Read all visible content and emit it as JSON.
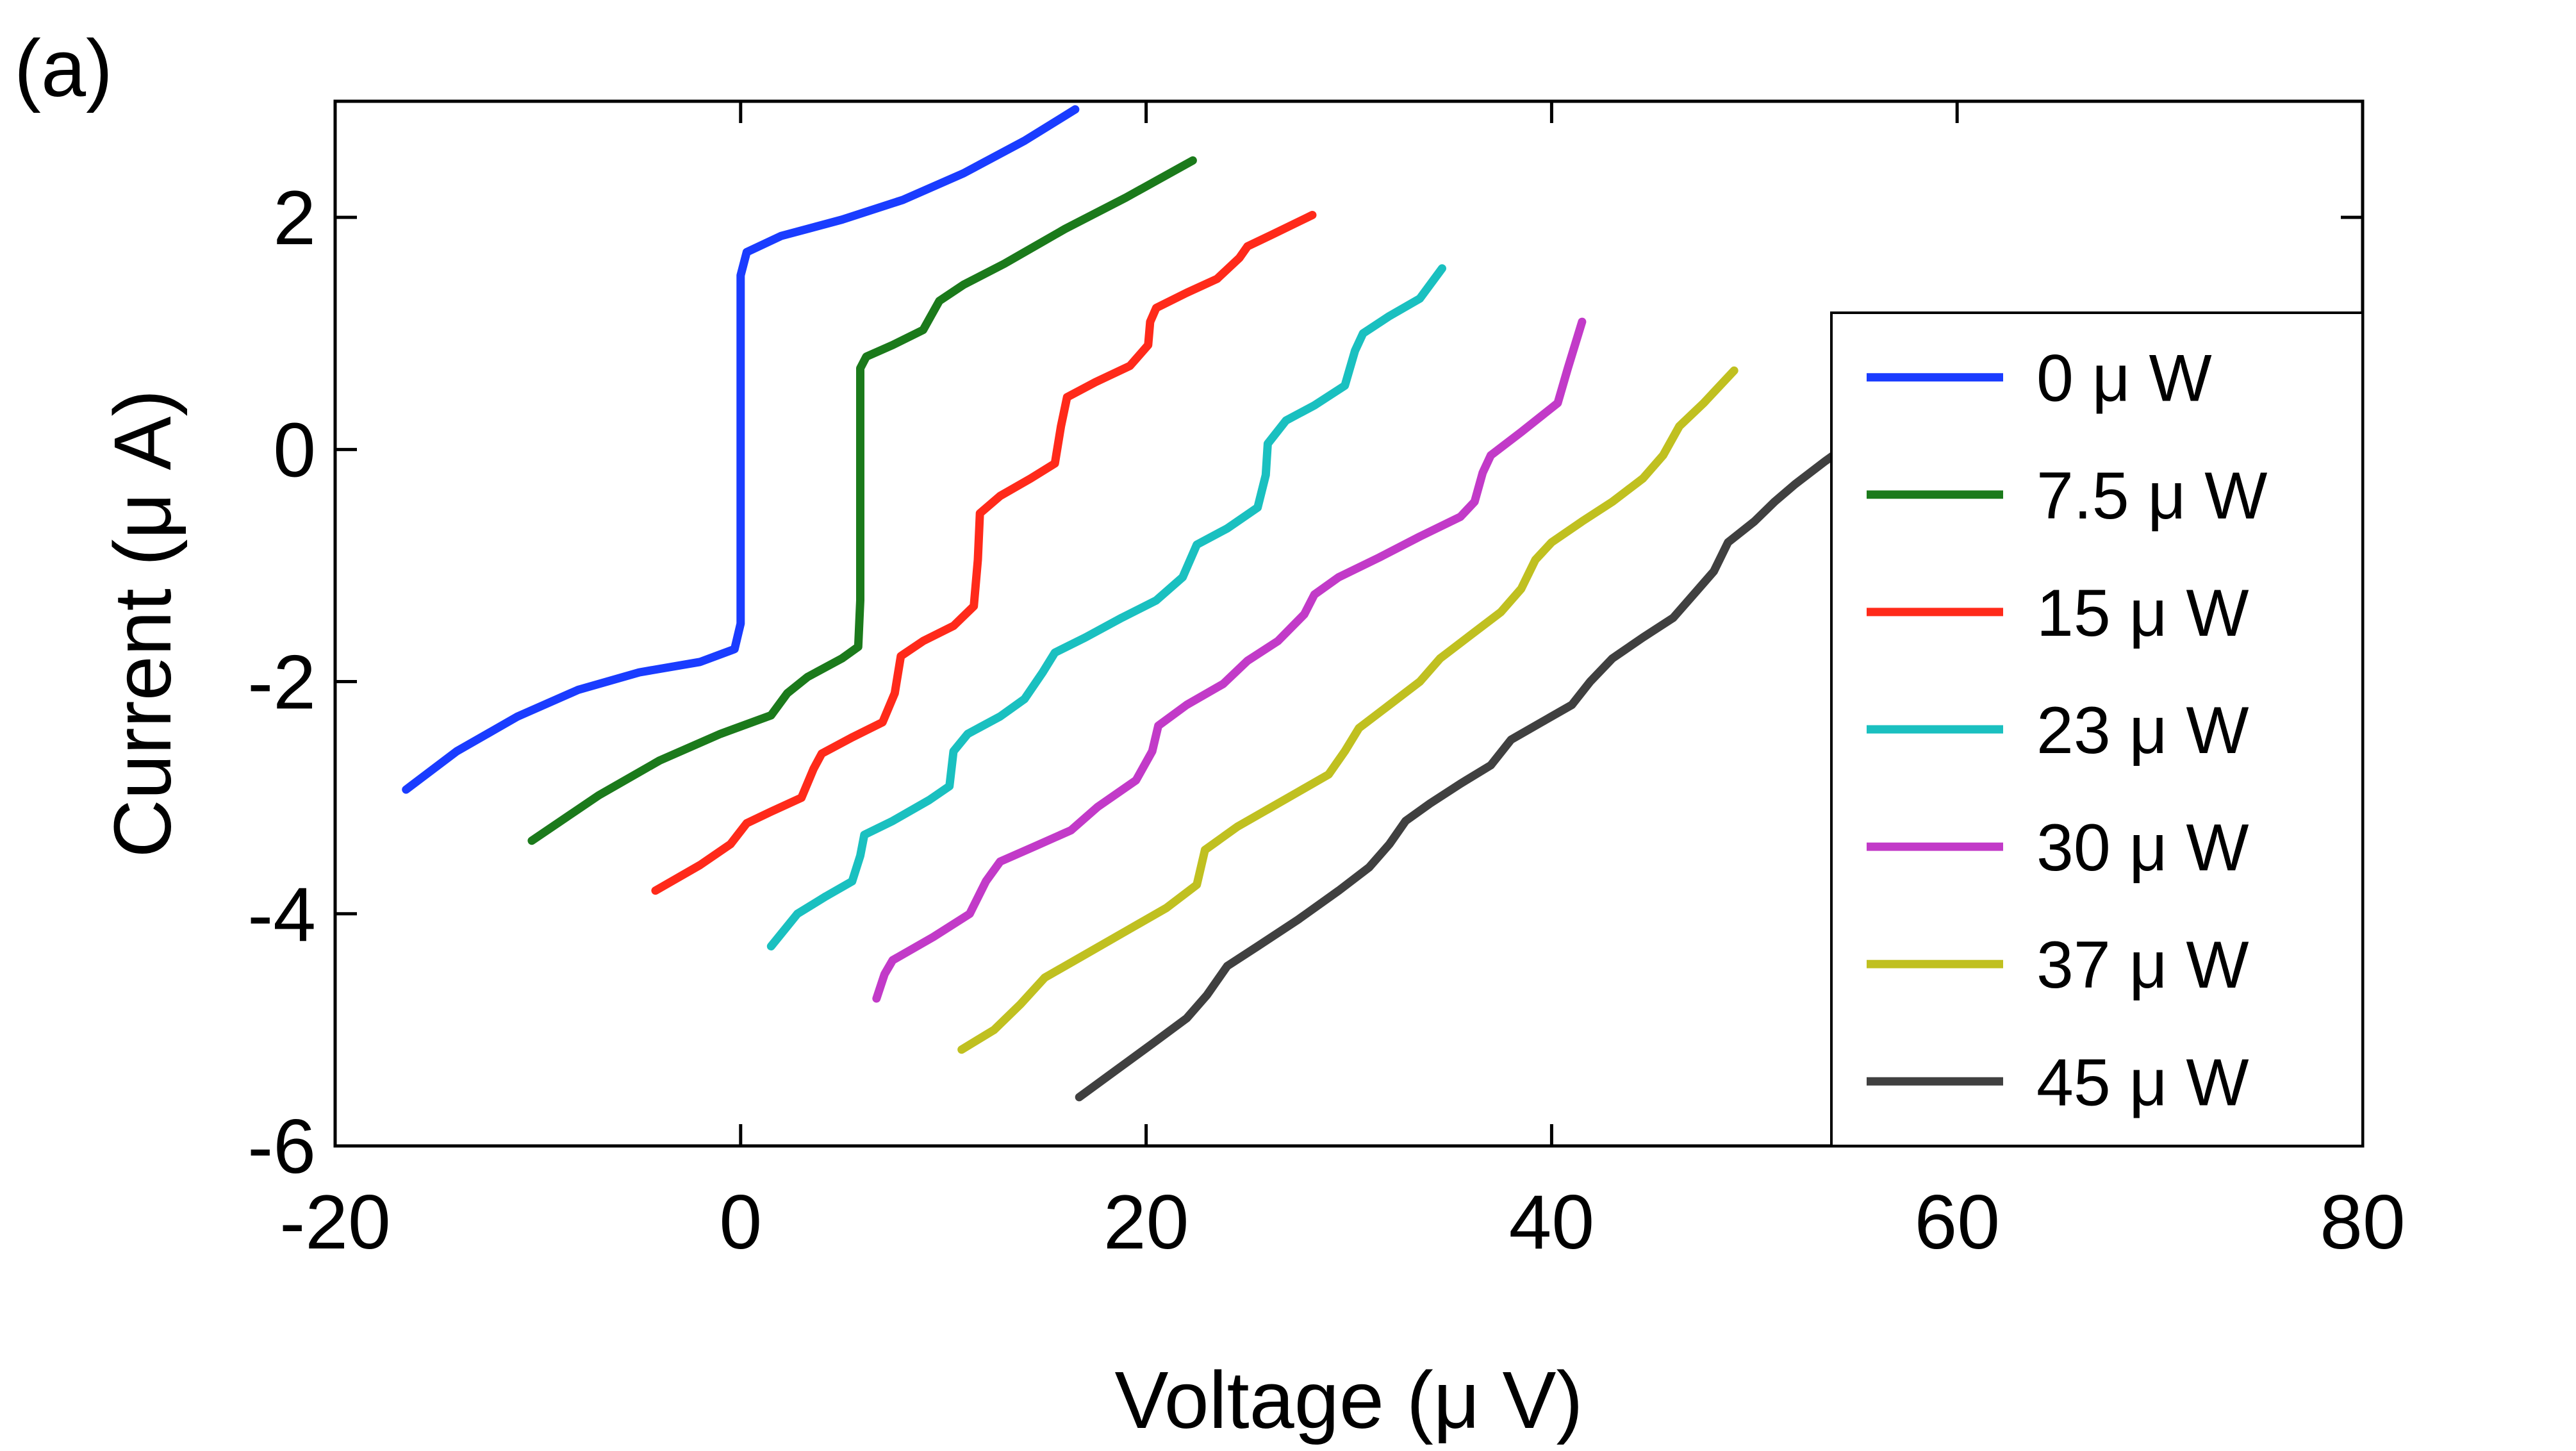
{
  "chart_data": {
    "type": "line",
    "panel_label": "(a)",
    "xlabel": "Voltage (μ  V)",
    "ylabel": "Current (μ  A)",
    "xlim": [
      -20,
      80
    ],
    "ylim": [
      -6,
      3
    ],
    "xticks": [
      -20,
      0,
      20,
      40,
      60,
      80
    ],
    "xtick_labels": [
      "-20",
      "0",
      "20",
      "40",
      "60",
      "80"
    ],
    "yticks": [
      -6,
      -4,
      -2,
      0,
      2
    ],
    "ytick_labels": [
      "-6",
      "-4",
      "-2",
      "0",
      "2"
    ],
    "legend_position": "right",
    "series": [
      {
        "name": "0 μ W",
        "color": "#1a3cff",
        "points": [
          [
            -16.5,
            -2.93
          ],
          [
            -14,
            -2.6
          ],
          [
            -11,
            -2.3
          ],
          [
            -8,
            -2.07
          ],
          [
            -5,
            -1.92
          ],
          [
            -2,
            -1.83
          ],
          [
            -0.3,
            -1.72
          ],
          [
            0,
            -1.5
          ],
          [
            0,
            -0.8
          ],
          [
            0,
            0
          ],
          [
            0,
            0.8
          ],
          [
            0,
            1.5
          ],
          [
            0.3,
            1.7
          ],
          [
            2,
            1.84
          ],
          [
            5,
            1.98
          ],
          [
            8,
            2.15
          ],
          [
            11,
            2.38
          ],
          [
            14,
            2.66
          ],
          [
            16.5,
            2.93
          ]
        ]
      },
      {
        "name": "7.5 μ W",
        "color": "#1b7a1b",
        "points": [
          [
            -10.3,
            -3.37
          ],
          [
            -7,
            -2.98
          ],
          [
            -4,
            -2.68
          ],
          [
            -1,
            -2.45
          ],
          [
            1.5,
            -2.29
          ],
          [
            2.3,
            -2.1
          ],
          [
            3.3,
            -1.96
          ],
          [
            5,
            -1.8
          ],
          [
            5.8,
            -1.7
          ],
          [
            5.9,
            -1.3
          ],
          [
            5.9,
            -0.6
          ],
          [
            5.9,
            0.2
          ],
          [
            5.9,
            0.7
          ],
          [
            6.2,
            0.8
          ],
          [
            7.5,
            0.9
          ],
          [
            9,
            1.03
          ],
          [
            9.8,
            1.28
          ],
          [
            11,
            1.42
          ],
          [
            13,
            1.6
          ],
          [
            16,
            1.9
          ],
          [
            19,
            2.17
          ],
          [
            22.3,
            2.49
          ]
        ]
      },
      {
        "name": "15 μ W",
        "color": "#ff2a1a",
        "points": [
          [
            -4.2,
            -3.8
          ],
          [
            -2,
            -3.58
          ],
          [
            -0.5,
            -3.4
          ],
          [
            0.3,
            -3.22
          ],
          [
            1.5,
            -3.12
          ],
          [
            3,
            -3.0
          ],
          [
            3.6,
            -2.75
          ],
          [
            4,
            -2.62
          ],
          [
            5.5,
            -2.48
          ],
          [
            7,
            -2.35
          ],
          [
            7.6,
            -2.1
          ],
          [
            7.9,
            -1.78
          ],
          [
            9,
            -1.65
          ],
          [
            10.5,
            -1.52
          ],
          [
            11.5,
            -1.35
          ],
          [
            11.7,
            -0.95
          ],
          [
            11.8,
            -0.55
          ],
          [
            12.8,
            -0.4
          ],
          [
            14.3,
            -0.25
          ],
          [
            15.5,
            -0.12
          ],
          [
            15.8,
            0.2
          ],
          [
            16.1,
            0.45
          ],
          [
            17.5,
            0.58
          ],
          [
            19.2,
            0.72
          ],
          [
            20.1,
            0.9
          ],
          [
            20.2,
            1.1
          ],
          [
            20.5,
            1.22
          ],
          [
            22,
            1.35
          ],
          [
            23.5,
            1.47
          ],
          [
            24.6,
            1.65
          ],
          [
            25,
            1.75
          ],
          [
            26.2,
            1.85
          ],
          [
            28.2,
            2.02
          ]
        ]
      },
      {
        "name": "23 μ W",
        "color": "#1ac0c0",
        "points": [
          [
            1.5,
            -4.28
          ],
          [
            2.8,
            -4.0
          ],
          [
            4.2,
            -3.85
          ],
          [
            5.5,
            -3.72
          ],
          [
            5.9,
            -3.5
          ],
          [
            6.1,
            -3.32
          ],
          [
            7.5,
            -3.2
          ],
          [
            9.3,
            -3.02
          ],
          [
            10.3,
            -2.9
          ],
          [
            10.5,
            -2.6
          ],
          [
            11.2,
            -2.45
          ],
          [
            12.8,
            -2.3
          ],
          [
            14,
            -2.15
          ],
          [
            14.9,
            -1.92
          ],
          [
            15.5,
            -1.75
          ],
          [
            17,
            -1.62
          ],
          [
            18.8,
            -1.45
          ],
          [
            20.5,
            -1.3
          ],
          [
            21.8,
            -1.1
          ],
          [
            22.5,
            -0.82
          ],
          [
            24,
            -0.68
          ],
          [
            25.5,
            -0.5
          ],
          [
            25.9,
            -0.22
          ],
          [
            26,
            0.05
          ],
          [
            26.9,
            0.25
          ],
          [
            28.3,
            0.38
          ],
          [
            29.8,
            0.55
          ],
          [
            30.3,
            0.85
          ],
          [
            30.7,
            1.0
          ],
          [
            32,
            1.15
          ],
          [
            33.5,
            1.3
          ],
          [
            34.6,
            1.56
          ]
        ]
      },
      {
        "name": "30 μ W",
        "color": "#c23ac8",
        "points": [
          [
            6.7,
            -4.73
          ],
          [
            7.1,
            -4.52
          ],
          [
            7.5,
            -4.4
          ],
          [
            9.5,
            -4.2
          ],
          [
            11.3,
            -4.0
          ],
          [
            12.1,
            -3.72
          ],
          [
            12.8,
            -3.55
          ],
          [
            14.5,
            -3.42
          ],
          [
            16.3,
            -3.28
          ],
          [
            17.6,
            -3.08
          ],
          [
            19.5,
            -2.85
          ],
          [
            20.3,
            -2.6
          ],
          [
            20.6,
            -2.38
          ],
          [
            22,
            -2.2
          ],
          [
            23.8,
            -2.02
          ],
          [
            25,
            -1.82
          ],
          [
            26.5,
            -1.65
          ],
          [
            27.8,
            -1.42
          ],
          [
            28.3,
            -1.25
          ],
          [
            29.5,
            -1.1
          ],
          [
            31.5,
            -0.93
          ],
          [
            33.5,
            -0.75
          ],
          [
            35.5,
            -0.58
          ],
          [
            36.2,
            -0.45
          ],
          [
            36.6,
            -0.2
          ],
          [
            37,
            -0.05
          ],
          [
            38.5,
            0.15
          ],
          [
            40.3,
            0.4
          ],
          [
            40.8,
            0.7
          ],
          [
            41.5,
            1.1
          ]
        ]
      },
      {
        "name": "37 μ W",
        "color": "#c0c020",
        "points": [
          [
            10.9,
            -5.17
          ],
          [
            12.5,
            -5.0
          ],
          [
            13.8,
            -4.78
          ],
          [
            15,
            -4.55
          ],
          [
            17,
            -4.35
          ],
          [
            19,
            -4.15
          ],
          [
            21,
            -3.95
          ],
          [
            22.5,
            -3.75
          ],
          [
            22.9,
            -3.45
          ],
          [
            24.5,
            -3.25
          ],
          [
            26,
            -3.1
          ],
          [
            27.5,
            -2.95
          ],
          [
            29,
            -2.8
          ],
          [
            29.8,
            -2.6
          ],
          [
            30.5,
            -2.4
          ],
          [
            32,
            -2.2
          ],
          [
            33.5,
            -2.0
          ],
          [
            34.5,
            -1.8
          ],
          [
            36,
            -1.6
          ],
          [
            37.5,
            -1.4
          ],
          [
            38.5,
            -1.2
          ],
          [
            39.2,
            -0.95
          ],
          [
            40,
            -0.8
          ],
          [
            41.5,
            -0.62
          ],
          [
            43,
            -0.45
          ],
          [
            44.5,
            -0.25
          ],
          [
            45.5,
            -0.05
          ],
          [
            46.3,
            0.2
          ],
          [
            47.5,
            0.4
          ],
          [
            49,
            0.68
          ]
        ]
      },
      {
        "name": "45 μ W",
        "color": "#404040",
        "points": [
          [
            16.7,
            -5.58
          ],
          [
            18.5,
            -5.35
          ],
          [
            20.3,
            -5.12
          ],
          [
            22,
            -4.9
          ],
          [
            23,
            -4.7
          ],
          [
            24,
            -4.45
          ],
          [
            25.5,
            -4.28
          ],
          [
            27.5,
            -4.05
          ],
          [
            29.5,
            -3.8
          ],
          [
            31,
            -3.6
          ],
          [
            32,
            -3.4
          ],
          [
            32.8,
            -3.2
          ],
          [
            34,
            -3.05
          ],
          [
            35.5,
            -2.88
          ],
          [
            37,
            -2.72
          ],
          [
            38,
            -2.5
          ],
          [
            39.5,
            -2.35
          ],
          [
            41,
            -2.2
          ],
          [
            41.9,
            -2.0
          ],
          [
            43,
            -1.8
          ],
          [
            44.5,
            -1.62
          ],
          [
            46,
            -1.45
          ],
          [
            47,
            -1.25
          ],
          [
            48,
            -1.05
          ],
          [
            48.7,
            -0.8
          ],
          [
            50,
            -0.62
          ],
          [
            51,
            -0.45
          ],
          [
            52,
            -0.3
          ],
          [
            53.5,
            -0.1
          ],
          [
            54.3,
            0.0
          ]
        ]
      }
    ]
  }
}
